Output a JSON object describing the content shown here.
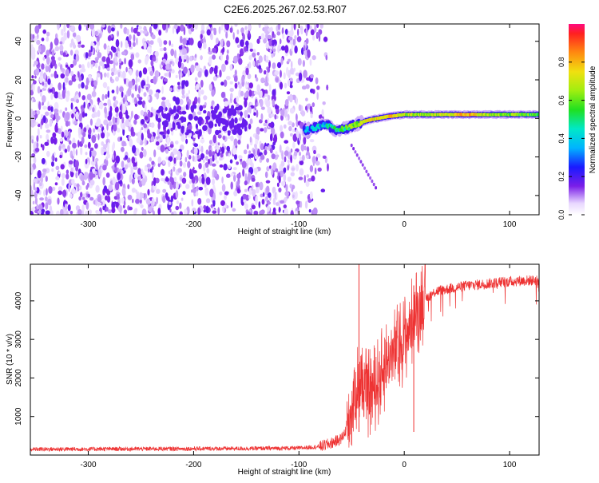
{
  "figure_title": "C2E6.2025.267.02.53.R07",
  "colors": {
    "snr_line": "#ee3333",
    "background": "#ffffff",
    "axis": "#000000",
    "noise_purple": "#7a1ee8",
    "ridge_core": "#e4141b"
  },
  "chart_data": [
    {
      "type": "heatmap",
      "title": "C2E6.2025.267.02.53.R07",
      "xlabel": "Height of straight line (km)",
      "ylabel": "Frequency (Hz)",
      "xlim": [
        -355,
        128
      ],
      "ylim": [
        -50,
        49
      ],
      "x_ticks": [
        -300,
        -200,
        -100,
        0,
        100
      ],
      "y_ticks": [
        -40,
        -20,
        0,
        20,
        40
      ],
      "colorbar": {
        "label": "Normalized spectral amplitude",
        "range": [
          0,
          1
        ],
        "ticks": [
          0.0,
          0.2,
          0.4,
          0.6,
          0.8
        ],
        "tick_labels": [
          "0.0",
          "0.2",
          "0.4",
          "0.6",
          "0.8"
        ],
        "colormap": "rainbow"
      },
      "grid": false,
      "description_points": {
        "noise_region_x": [
          -355,
          -75
        ],
        "noise_amplitude": 0.15,
        "ridge": {
          "x": [
            -95,
            -85,
            -75,
            -65,
            -55,
            -45,
            -35,
            -25,
            -15,
            0,
            20,
            40,
            60,
            80,
            100,
            128
          ],
          "frequency": [
            -6,
            -5,
            -3,
            -6,
            -5,
            -3,
            -1,
            0,
            1,
            2,
            2,
            2,
            2,
            2,
            2,
            2
          ],
          "amplitude": [
            0.3,
            0.35,
            0.4,
            0.5,
            0.6,
            0.7,
            0.8,
            0.85,
            0.9,
            0.8,
            0.7,
            0.8,
            0.95,
            0.75,
            0.7,
            0.6
          ]
        }
      }
    },
    {
      "type": "line",
      "title": "",
      "xlabel": "Height of straight line (km)",
      "ylabel": "SNR (10 * v/v)",
      "xlim": [
        -355,
        128
      ],
      "ylim": [
        0,
        4950
      ],
      "x_ticks": [
        -300,
        -200,
        -100,
        0,
        100
      ],
      "y_ticks": [
        1000,
        2000,
        3000,
        4000
      ],
      "grid": false,
      "series": [
        {
          "x": [
            -355,
            -300,
            -250,
            -200,
            -150,
            -100,
            -80,
            -70,
            -60,
            -55,
            -50,
            -45,
            -40,
            -35,
            -30,
            -25,
            -20,
            -15,
            -10,
            -5,
            0,
            5,
            10,
            15,
            20,
            25,
            30,
            40,
            50,
            60,
            70,
            80,
            90,
            100,
            110,
            120,
            128
          ],
          "y": [
            150,
            155,
            160,
            165,
            170,
            180,
            220,
            300,
            420,
            650,
            1200,
            1800,
            1750,
            1600,
            1700,
            1900,
            2200,
            2500,
            2650,
            2850,
            3000,
            3300,
            3600,
            3900,
            4050,
            4150,
            4250,
            4300,
            4350,
            4400,
            4420,
            4450,
            4480,
            4500,
            4520,
            4530,
            4540
          ]
        }
      ]
    }
  ]
}
